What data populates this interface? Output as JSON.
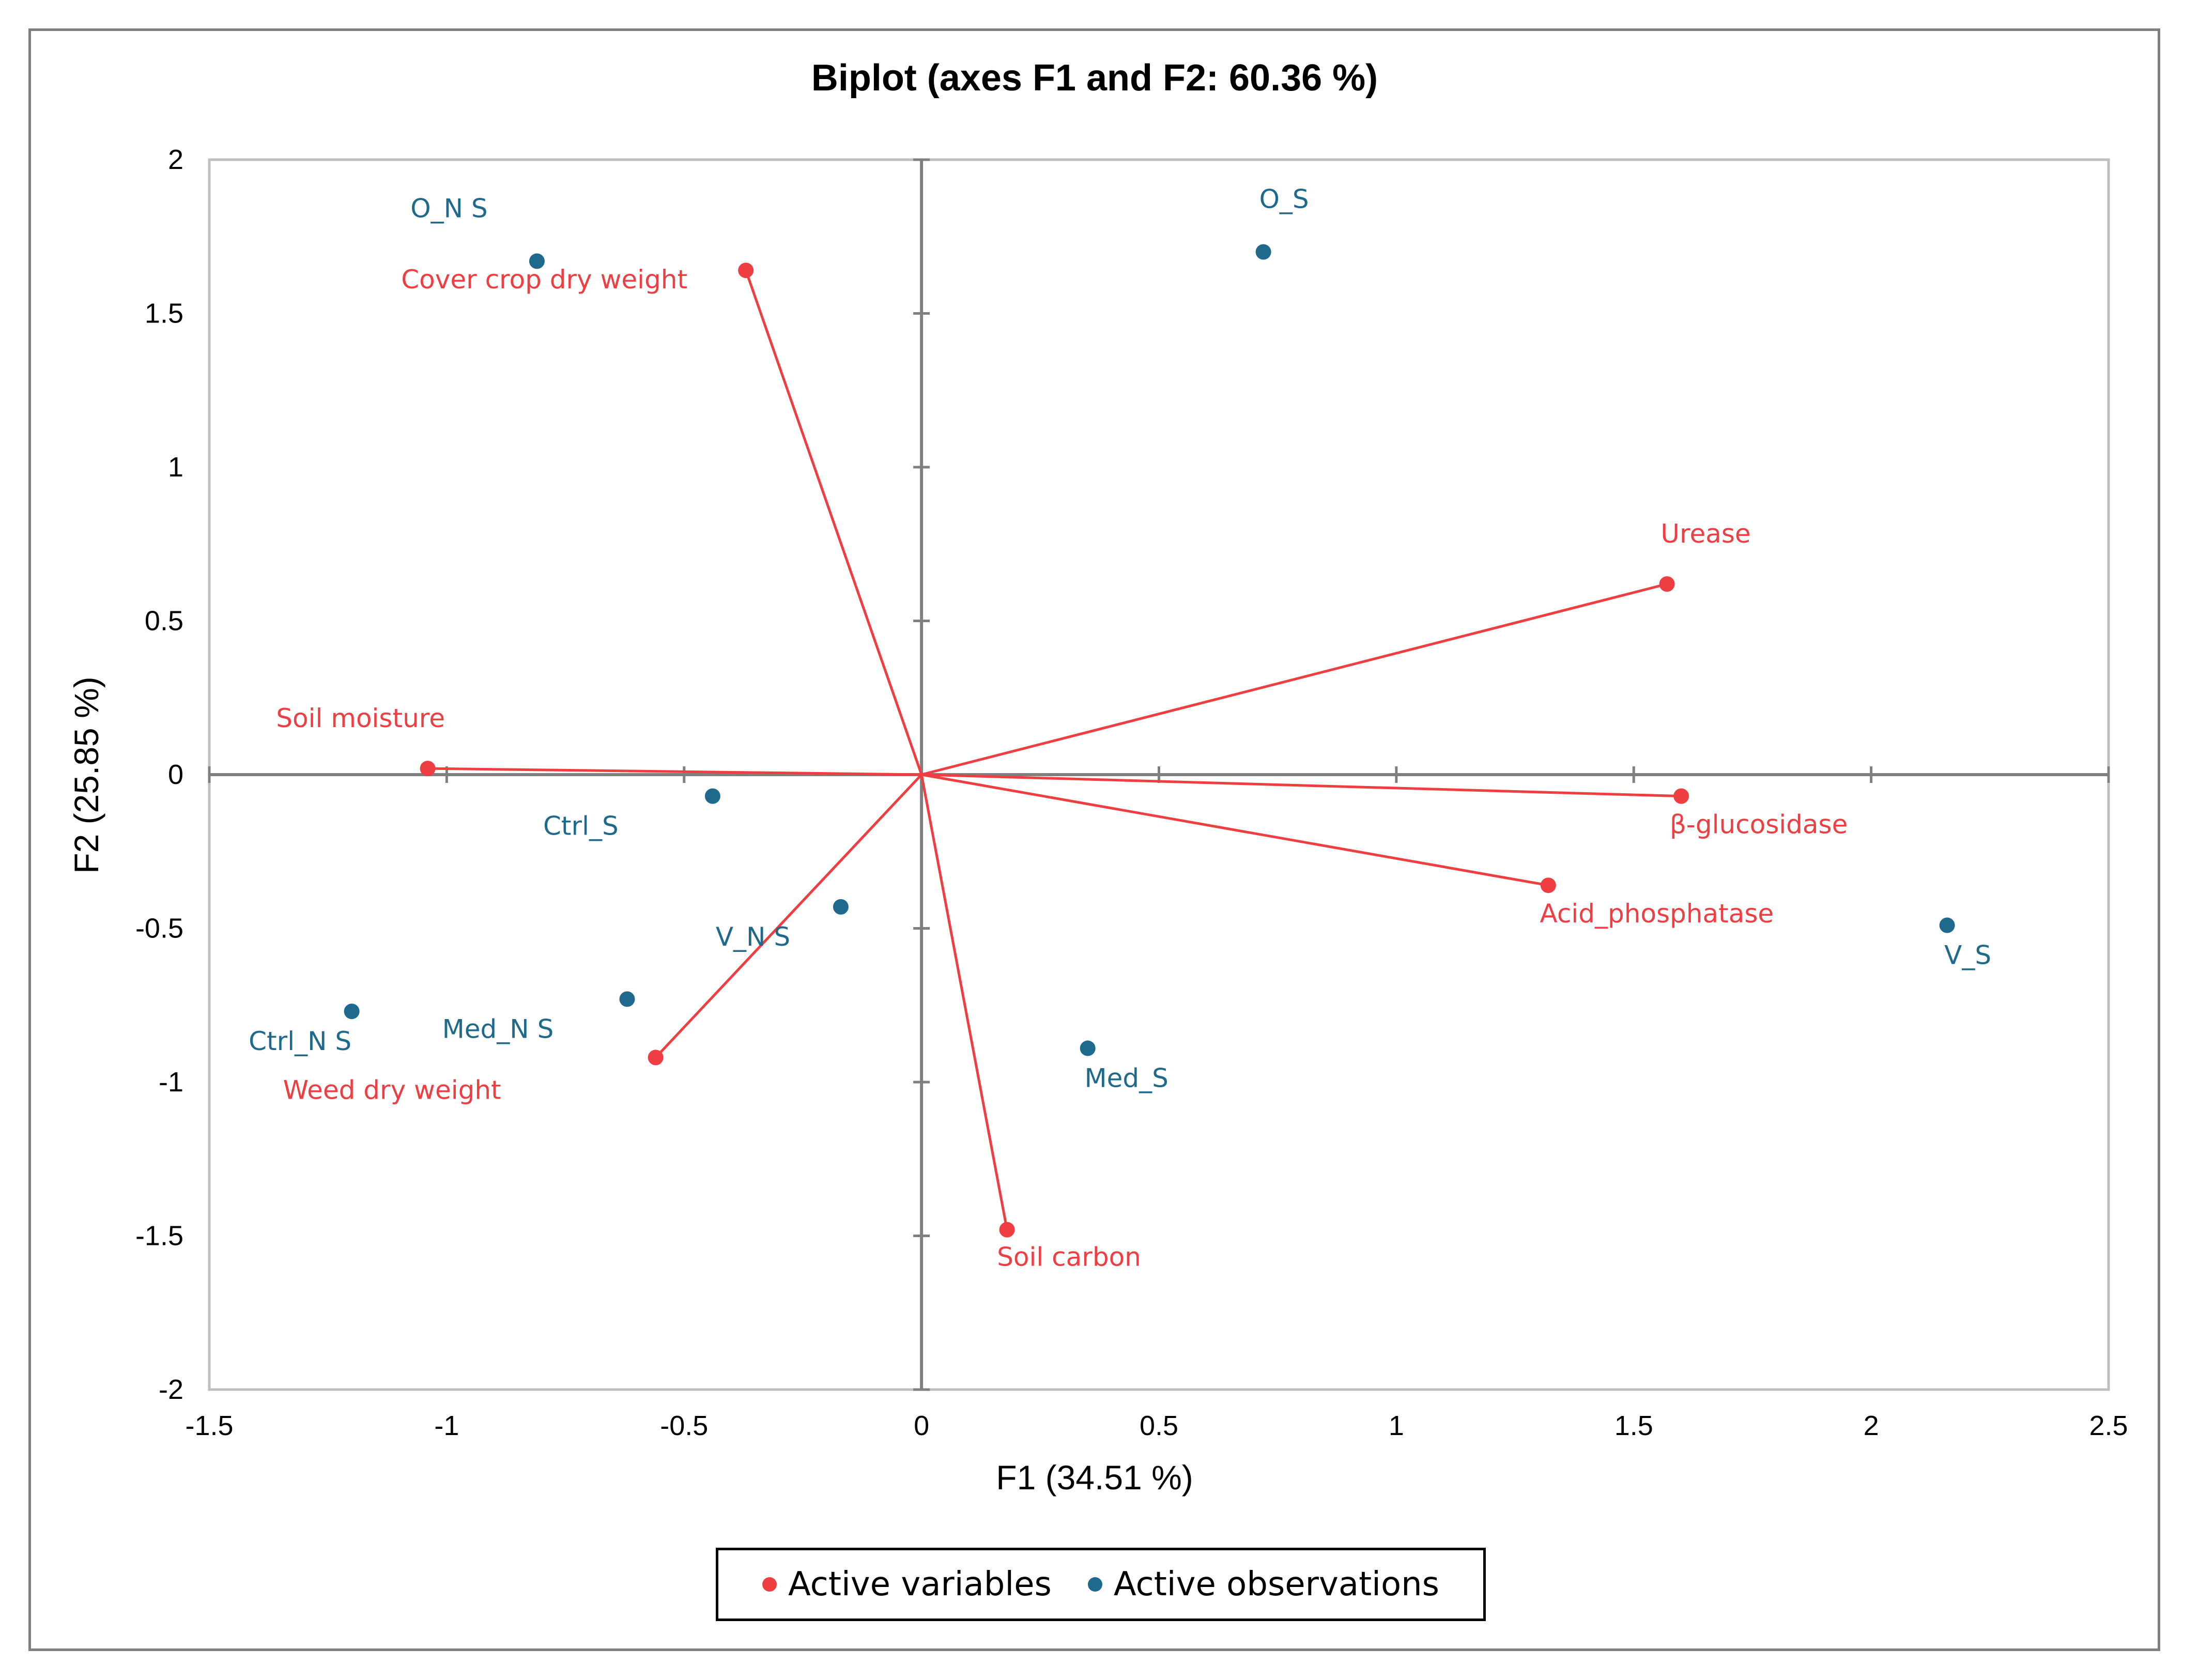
{
  "chart_data": {
    "type": "scatter",
    "title": "Biplot (axes F1 and F2: 60.36 %)",
    "xlabel": "F1 (34.51 %)",
    "ylabel": "F2 (25.85 %)",
    "xlim": [
      -1.5,
      2.5
    ],
    "ylim": [
      -2,
      2
    ],
    "xticks": [
      -1.5,
      -1,
      -0.5,
      0,
      0.5,
      1,
      1.5,
      2,
      2.5
    ],
    "yticks": [
      -2,
      -1.5,
      -1,
      -0.5,
      0,
      0.5,
      1,
      1.5,
      2
    ],
    "xtick_labels": [
      "-1.5",
      "-1",
      "-0.5",
      "0",
      "0.5",
      "1",
      "1.5",
      "2",
      "2.5"
    ],
    "ytick_labels": [
      "-2",
      "-1.5",
      "-1",
      "-0.5",
      "0",
      "0.5",
      "1",
      "1.5",
      "2"
    ],
    "legend_position": "bottom",
    "colors": {
      "variables": "#ef3e42",
      "observations": "#1f6a8c",
      "frame": "#bfbfbf",
      "origin_axis": "#7f7f7f"
    },
    "series": [
      {
        "name": "Active variables",
        "kind": "vectors",
        "points": [
          {
            "label": "Cover crop dry weight",
            "x": -0.37,
            "y": 1.64
          },
          {
            "label": "Urease",
            "x": 1.57,
            "y": 0.62
          },
          {
            "label": "Soil moisture",
            "x": -1.04,
            "y": 0.02
          },
          {
            "label": "β-glucosidase",
            "x": 1.6,
            "y": -0.07
          },
          {
            "label": "Acid_phosphatase",
            "x": 1.32,
            "y": -0.36
          },
          {
            "label": "Weed dry weight",
            "x": -0.56,
            "y": -0.92
          },
          {
            "label": "Soil carbon",
            "x": 0.18,
            "y": -1.48
          }
        ]
      },
      {
        "name": "Active observations",
        "kind": "points",
        "points": [
          {
            "label": "O_N S",
            "x": -0.81,
            "y": 1.67
          },
          {
            "label": "O_S",
            "x": 0.72,
            "y": 1.7
          },
          {
            "label": "Ctrl_S",
            "x": -0.44,
            "y": -0.07
          },
          {
            "label": "V_N S",
            "x": -0.17,
            "y": -0.43
          },
          {
            "label": "Med_N S",
            "x": -0.62,
            "y": -0.73
          },
          {
            "label": "Ctrl_N S",
            "x": -1.2,
            "y": -0.77
          },
          {
            "label": "Med_S",
            "x": 0.35,
            "y": -0.89
          },
          {
            "label": "V_S",
            "x": 2.16,
            "y": -0.49
          }
        ]
      }
    ]
  }
}
